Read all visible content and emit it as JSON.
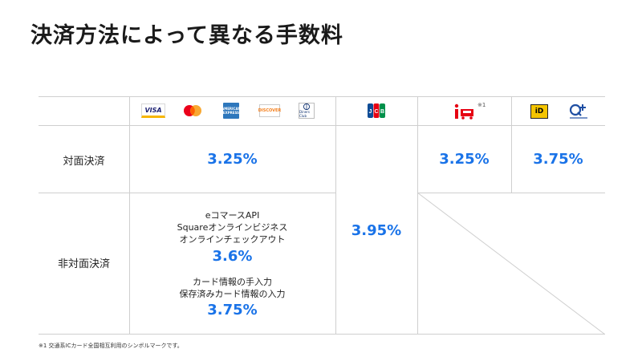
{
  "title": "決済方法によって異なる手数料",
  "rows": {
    "in_person": "対面決済",
    "online": "非対面決済"
  },
  "icons": {
    "visa": {
      "name": "visa-logo-icon",
      "text": "VISA"
    },
    "mastercard": {
      "name": "mastercard-logo-icon"
    },
    "amex": {
      "name": "american-express-logo-icon",
      "text": "AMERICAN EXPRESS"
    },
    "discover": {
      "name": "discover-logo-icon",
      "text": "DISCOVER"
    },
    "diners": {
      "name": "diners-club-logo-icon",
      "text": "Diners Club"
    },
    "jcb": {
      "name": "jcb-logo-icon"
    },
    "ic": {
      "name": "transit-ic-symbol-icon",
      "note": "※1"
    },
    "id": {
      "name": "id-logo-icon",
      "text": "iD"
    },
    "quicpay": {
      "name": "quicpay-logo-icon"
    }
  },
  "rates": {
    "cards_in_person": "3.25%",
    "jcb_all": "3.95%",
    "ic_in_person": "3.25%",
    "id_quicpay_in_person": "3.75%"
  },
  "online_cards": {
    "group1_lines": [
      "eコマースAPI",
      "Squareオンラインビジネス",
      "オンラインチェックアウト"
    ],
    "group1_rate": "3.6%",
    "group2_lines": [
      "カード情報の手入力",
      "保存済みカード情報の入力"
    ],
    "group2_rate": "3.75%"
  },
  "colors": {
    "accent": "#1a73e8",
    "grid": "#cfcfcf",
    "jcb_blue": "#0e4c96",
    "jcb_red": "#e60012",
    "jcb_green": "#00904a",
    "ic_red": "#e60012"
  },
  "footnote": "※1 交通系ICカード全国相互利用のシンボルマークです。"
}
